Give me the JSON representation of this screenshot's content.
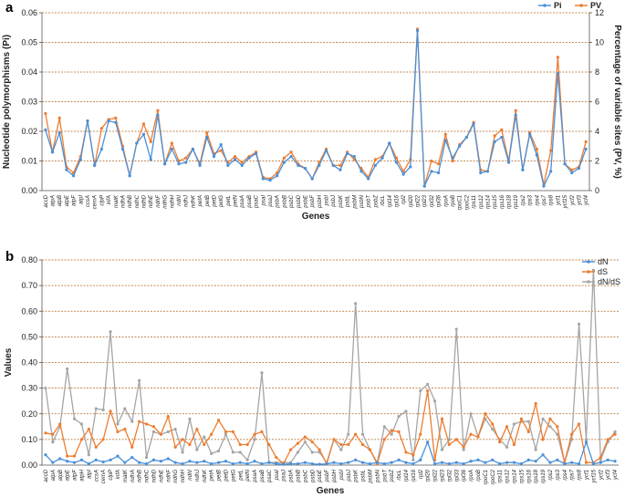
{
  "colors": {
    "pi": "#4a90d9",
    "pv": "#ed7d31",
    "dn": "#4a90d9",
    "ds": "#ed7d31",
    "dnds": "#a5a5a5",
    "grid": "#b0641e"
  },
  "chart_data": [
    {
      "panel_label": "a",
      "type": "line",
      "xlabel": "Genes",
      "ylabel": "Nucleotide polymorphisms (Pi)",
      "y2label": "Percentage of variable sites (PV, %)",
      "ylim": [
        0,
        0.06
      ],
      "y2lim": [
        0,
        12
      ],
      "yticks": [
        "0.00",
        "0.01",
        "0.02",
        "0.03",
        "0.04",
        "0.05",
        "0.06"
      ],
      "y2ticks": [
        "0",
        "2",
        "4",
        "6",
        "8",
        "10",
        "12"
      ],
      "legend_position": "top-right",
      "categories": [
        "accD",
        "atpA",
        "atpB",
        "atpE",
        "atpF",
        "atpI",
        "ccsA",
        "cemA",
        "clpP",
        "infA",
        "matK",
        "ndhA",
        "ndhB",
        "ndhC",
        "ndhD",
        "ndhE",
        "ndhF",
        "ndhG",
        "ndhH",
        "ndhI",
        "ndhJ",
        "ndhK",
        "petA",
        "petB",
        "petD",
        "petG",
        "petL",
        "petN",
        "psaA",
        "psaB",
        "psaC",
        "psaI",
        "psaJ",
        "psbA",
        "psbB",
        "psbC",
        "psbD",
        "psbE",
        "psbF",
        "psbH",
        "psbI",
        "psbJ",
        "psbK",
        "psbL",
        "psbM",
        "psbN",
        "psbT",
        "psbZ",
        "rbcL",
        "rpl14",
        "rpl16",
        "rpl2",
        "rpl20",
        "rpl22",
        "rpl23",
        "rpl32",
        "rpl36",
        "rpoA",
        "rpoB",
        "rpoC1",
        "rpoC2",
        "rps11",
        "rps12",
        "rps14",
        "rps15",
        "rps16",
        "rps18",
        "rps19",
        "rps2",
        "rps3",
        "rps4",
        "rps7",
        "rps8",
        "ycf1",
        "ycf15",
        "ycf2",
        "ycf3",
        "ycf4"
      ],
      "series": [
        {
          "name": "Pi",
          "axis": "left",
          "values": [
            0.0205,
            0.013,
            0.0195,
            0.007,
            0.005,
            0.0105,
            0.0235,
            0.0085,
            0.014,
            0.0235,
            0.023,
            0.014,
            0.005,
            0.016,
            0.019,
            0.0105,
            0.0255,
            0.009,
            0.014,
            0.009,
            0.0095,
            0.014,
            0.0085,
            0.018,
            0.0115,
            0.0155,
            0.0085,
            0.0105,
            0.0085,
            0.011,
            0.0125,
            0.004,
            0.0035,
            0.005,
            0.0095,
            0.0115,
            0.0085,
            0.0075,
            0.004,
            0.0085,
            0.0135,
            0.0085,
            0.007,
            0.0125,
            0.0115,
            0.0065,
            0.004,
            0.0085,
            0.011,
            0.016,
            0.0095,
            0.0055,
            0.008,
            0.054,
            0.0015,
            0.0065,
            0.006,
            0.017,
            0.011,
            0.015,
            0.018,
            0.0225,
            0.006,
            0.0065,
            0.0165,
            0.018,
            0.0095,
            0.0255,
            0.007,
            0.019,
            0.012,
            0.0015,
            0.0065,
            0.0395,
            0.009,
            0.006,
            0.0075,
            0.014
          ]
        },
        {
          "name": "PV",
          "axis": "right",
          "values": [
            5.2,
            2.6,
            4.9,
            1.6,
            1.2,
            2.3,
            4.7,
            1.7,
            4.2,
            4.8,
            4.9,
            3.0,
            1.0,
            3.2,
            4.5,
            3.3,
            5.4,
            1.8,
            3.2,
            2.0,
            2.2,
            2.8,
            1.8,
            3.9,
            2.5,
            2.7,
            1.9,
            2.3,
            1.9,
            2.3,
            2.6,
            0.9,
            0.8,
            1.2,
            2.2,
            2.6,
            1.8,
            1.5,
            0.8,
            1.9,
            2.8,
            1.7,
            1.7,
            2.6,
            2.1,
            1.5,
            0.9,
            2.1,
            2.3,
            3.2,
            2.2,
            1.3,
            2.1,
            10.9,
            0.3,
            2.0,
            1.8,
            3.8,
            2.0,
            3.1,
            3.6,
            4.6,
            1.4,
            1.3,
            3.7,
            4.1,
            2.0,
            5.4,
            1.4,
            3.9,
            2.8,
            0.4,
            2.7,
            9.0,
            1.8,
            1.4,
            1.6,
            3.3
          ]
        }
      ]
    },
    {
      "panel_label": "b",
      "type": "line",
      "xlabel": "Genes",
      "ylabel": "Values",
      "ylim": [
        0,
        0.8
      ],
      "yticks": [
        "0.00",
        "0.10",
        "0.20",
        "0.30",
        "0.40",
        "0.50",
        "0.60",
        "0.70",
        "0.80"
      ],
      "legend_position": "top-right",
      "categories": [
        "accD",
        "atpA",
        "atpB",
        "atpE",
        "atpF",
        "atpH",
        "atpI",
        "ccsA",
        "cemA",
        "clpP",
        "infA",
        "matK",
        "ndhA",
        "ndhB",
        "ndhC",
        "ndhD",
        "ndhE",
        "ndhF",
        "ndhG",
        "ndhH",
        "ndhI",
        "ndhJ",
        "ndhK",
        "petA",
        "petB",
        "petD",
        "petG",
        "petL",
        "petN",
        "psaA",
        "psaB",
        "psaC",
        "psaI",
        "psaJ",
        "psbA",
        "psbB",
        "psbC",
        "psbD",
        "psbE",
        "psbF",
        "psbH",
        "psbI",
        "psbJ",
        "psbK",
        "psbL",
        "psbM",
        "psbN",
        "psbT",
        "psbZ",
        "rbcL",
        "rpl14",
        "rpl16",
        "rpl2",
        "rpl20",
        "rpl22",
        "rpl23",
        "rpl32",
        "rpl33",
        "rpl36",
        "rpoA",
        "rpoB",
        "rpoC1",
        "rpoC2",
        "rps11",
        "rps12",
        "rps14",
        "rps15",
        "rps16",
        "rps18",
        "rps19",
        "rps2",
        "rps3",
        "rps4",
        "rps7",
        "rps8",
        "ycf1",
        "ycf15",
        "ycf2",
        "ycf3",
        "ycf4"
      ],
      "series": [
        {
          "name": "dN",
          "values": [
            0.04,
            0.01,
            0.025,
            0.015,
            0.01,
            0.02,
            0.005,
            0.02,
            0.012,
            0.02,
            0.035,
            0.01,
            0.03,
            0.01,
            0.005,
            0.02,
            0.015,
            0.025,
            0.01,
            0.005,
            0.015,
            0.01,
            0.015,
            0.005,
            0.01,
            0.015,
            0.005,
            0.01,
            0.005,
            0.015,
            0.005,
            0.01,
            0.005,
            0.003,
            0.005,
            0.005,
            0.01,
            0.005,
            0.003,
            0.005,
            0.01,
            0.005,
            0.01,
            0.02,
            0.01,
            0.005,
            0.01,
            0.005,
            0.01,
            0.02,
            0.01,
            0.005,
            0.02,
            0.09,
            0.005,
            0.01,
            0.005,
            0.01,
            0.005,
            0.015,
            0.02,
            0.01,
            0.02,
            0.005,
            0.01,
            0.01,
            0.005,
            0.02,
            0.015,
            0.04,
            0.01,
            0.02,
            0.005,
            0.01,
            0.005,
            0.09,
            0.005,
            0.01,
            0.02,
            0.015
          ]
        },
        {
          "name": "dS",
          "values": [
            0.125,
            0.12,
            0.16,
            0.035,
            0.035,
            0.1,
            0.14,
            0.07,
            0.1,
            0.21,
            0.13,
            0.14,
            0.07,
            0.17,
            0.16,
            0.15,
            0.12,
            0.19,
            0.07,
            0.1,
            0.08,
            0.14,
            0.08,
            0.12,
            0.175,
            0.13,
            0.13,
            0.08,
            0.08,
            0.12,
            0.13,
            0.08,
            0.03,
            0.005,
            0.06,
            0.085,
            0.11,
            0.09,
            0.06,
            0.005,
            0.1,
            0.08,
            0.08,
            0.12,
            0.08,
            0.06,
            0.005,
            0.1,
            0.135,
            0.13,
            0.05,
            0.04,
            0.12,
            0.29,
            0.02,
            0.18,
            0.08,
            0.1,
            0.07,
            0.12,
            0.11,
            0.2,
            0.16,
            0.09,
            0.15,
            0.08,
            0.18,
            0.13,
            0.24,
            0.1,
            0.18,
            0.15,
            0.01,
            0.12,
            0.16,
            0.01,
            0.01,
            0.03,
            0.1,
            0.12
          ]
        },
        {
          "name": "dN/dS",
          "values": [
            0.3,
            0.09,
            0.15,
            0.375,
            0.18,
            0.16,
            0.04,
            0.22,
            0.215,
            0.52,
            0.16,
            0.22,
            0.17,
            0.33,
            0.03,
            0.13,
            0.12,
            0.13,
            0.14,
            0.05,
            0.18,
            0.06,
            0.11,
            0.045,
            0.055,
            0.12,
            0.05,
            0.05,
            0.02,
            0.1,
            0.36,
            0.01,
            0.01,
            0.01,
            0.01,
            0.05,
            0.09,
            0.05,
            0.05,
            0.01,
            0.1,
            0.06,
            0.12,
            0.63,
            0.12,
            0.06,
            0.01,
            0.15,
            0.12,
            0.19,
            0.21,
            0.02,
            0.29,
            0.315,
            0.25,
            0.06,
            0.1,
            0.53,
            0.06,
            0.2,
            0.11,
            0.18,
            0.14,
            0.1,
            0.07,
            0.16,
            0.17,
            0.17,
            0.06,
            0.18,
            0.15,
            0.12,
            0.01,
            0.1,
            0.55,
            0.1,
            0.76,
            0.02,
            0.09,
            0.13
          ]
        }
      ]
    }
  ]
}
